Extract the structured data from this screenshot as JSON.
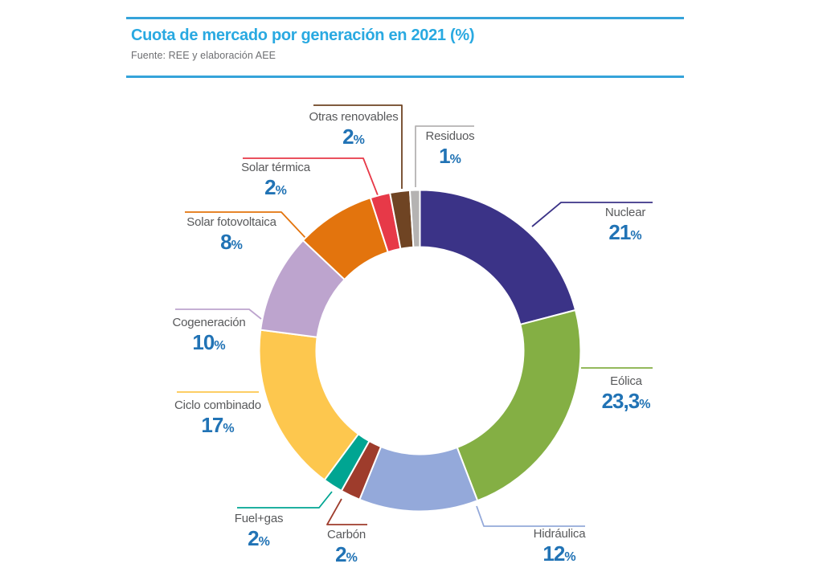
{
  "header": {
    "title": "Cuota de mercado por generación en 2021 (%)",
    "subtitle": "Fuente: REE y elaboración AEE",
    "title_color": "#29A9E1",
    "rule_color": "#35A3DA"
  },
  "chart_data": {
    "type": "pie",
    "variant": "donut",
    "title": "Cuota de mercado por generación en 2021 (%)",
    "source": "Fuente: REE y elaboración AEE",
    "unit": "%",
    "pct_symbol": "%",
    "start_angle_deg": 0,
    "direction": "clockwise",
    "label_text_color": "#58595B",
    "value_text_color": "#2173B5",
    "slices": [
      {
        "id": "nuclear",
        "label": "Nuclear",
        "value": 21,
        "display": "21",
        "color": "#3B3387"
      },
      {
        "id": "eolica",
        "label": "Eólica",
        "value": 23.3,
        "display": "23,3",
        "color": "#84AF44"
      },
      {
        "id": "hidraulica",
        "label": "Hidráulica",
        "value": 12,
        "display": "12",
        "color": "#94A9DA"
      },
      {
        "id": "carbon",
        "label": "Carbón",
        "value": 2,
        "display": "2",
        "color": "#9E3C2C"
      },
      {
        "id": "fuel-gas",
        "label": "Fuel+gas",
        "value": 2,
        "display": "2",
        "color": "#00A592"
      },
      {
        "id": "ciclo-combinado",
        "label": "Ciclo combinado",
        "value": 17,
        "display": "17",
        "color": "#FDC74E"
      },
      {
        "id": "cogeneracion",
        "label": "Cogeneración",
        "value": 10,
        "display": "10",
        "color": "#BDA4CE"
      },
      {
        "id": "solar-fotovoltaica",
        "label": "Solar fotovoltaica",
        "value": 8,
        "display": "8",
        "color": "#E3740D"
      },
      {
        "id": "solar-termica",
        "label": "Solar térmica",
        "value": 2,
        "display": "2",
        "color": "#E73948"
      },
      {
        "id": "otras-renovables",
        "label": "Otras renovables",
        "value": 2,
        "display": "2",
        "color": "#6F4423"
      },
      {
        "id": "residuos",
        "label": "Residuos",
        "value": 1,
        "display": "1",
        "color": "#B5B3B2"
      }
    ]
  }
}
